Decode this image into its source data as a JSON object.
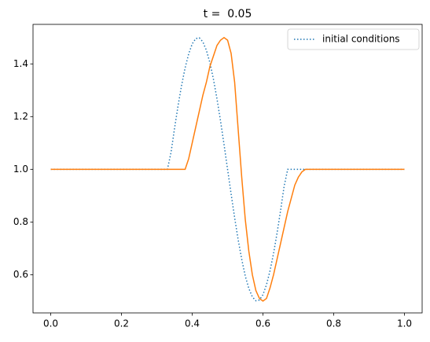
{
  "chart_data": {
    "type": "line",
    "title": "t =  0.05",
    "x": [
      0,
      0.01,
      0.02,
      0.03,
      0.04,
      0.05,
      0.06,
      0.07,
      0.08,
      0.09,
      0.1,
      0.11,
      0.12,
      0.13,
      0.14,
      0.15,
      0.16,
      0.17,
      0.18,
      0.19,
      0.2,
      0.21,
      0.22,
      0.23,
      0.24,
      0.25,
      0.26,
      0.27,
      0.28,
      0.29,
      0.3,
      0.31,
      0.32,
      0.33,
      0.34,
      0.35,
      0.36,
      0.37,
      0.38,
      0.39,
      0.4,
      0.41,
      0.42,
      0.43,
      0.44,
      0.45,
      0.46,
      0.47,
      0.48,
      0.49,
      0.5,
      0.51,
      0.52,
      0.53,
      0.54,
      0.55,
      0.56,
      0.57,
      0.58,
      0.59,
      0.6,
      0.61,
      0.62,
      0.63,
      0.64,
      0.65,
      0.66,
      0.67,
      0.68,
      0.69,
      0.7,
      0.71,
      0.72,
      0.73,
      0.74,
      0.75,
      0.76,
      0.77,
      0.78,
      0.79,
      0.8,
      0.81,
      0.82,
      0.83,
      0.84,
      0.85,
      0.86,
      0.87,
      0.88,
      0.89,
      0.9,
      0.91,
      0.92,
      0.93,
      0.94,
      0.95,
      0.96,
      0.97,
      0.98,
      0.99,
      1
    ],
    "series": [
      {
        "name": "initial conditions",
        "color": "#1f77b4",
        "style": "dotted",
        "values": [
          1,
          1,
          1,
          1,
          1,
          1,
          1,
          1,
          1,
          1,
          1,
          1,
          1,
          1,
          1,
          1,
          1,
          1,
          1,
          1,
          1,
          1,
          1,
          1,
          1,
          1,
          1,
          1,
          1,
          1,
          1,
          1,
          1,
          1,
          1.063,
          1.155,
          1.241,
          1.319,
          1.385,
          1.438,
          1.476,
          1.496,
          1.499,
          1.484,
          1.452,
          1.405,
          1.342,
          1.268,
          1.184,
          1.094,
          1,
          0.906,
          0.816,
          0.732,
          0.658,
          0.595,
          0.548,
          0.516,
          0.501,
          0.504,
          0.524,
          0.562,
          0.615,
          0.681,
          0.759,
          0.845,
          0.937,
          1,
          1,
          1,
          1,
          1,
          1,
          1,
          1,
          1,
          1,
          1,
          1,
          1,
          1,
          1,
          1,
          1,
          1,
          1,
          1,
          1,
          1,
          1,
          1,
          1,
          1,
          1,
          1,
          1,
          1,
          1,
          1,
          1,
          1
        ]
      },
      {
        "color": "#ff7f0e",
        "style": "solid",
        "values": [
          1,
          1,
          1,
          1,
          1,
          1,
          1,
          1,
          1,
          1,
          1,
          1,
          1,
          1,
          1,
          1,
          1,
          1,
          1,
          1,
          1,
          1,
          1,
          1,
          1,
          1,
          1,
          1,
          1,
          1,
          1,
          1,
          1,
          1,
          1,
          1,
          1,
          1,
          1,
          1.04,
          1.1,
          1.16,
          1.22,
          1.28,
          1.33,
          1.39,
          1.43,
          1.47,
          1.49,
          1.5,
          1.49,
          1.44,
          1.33,
          1.15,
          0.97,
          0.81,
          0.69,
          0.6,
          0.54,
          0.51,
          0.5,
          0.51,
          0.55,
          0.6,
          0.66,
          0.72,
          0.78,
          0.84,
          0.89,
          0.94,
          0.97,
          0.99,
          1,
          1,
          1,
          1,
          1,
          1,
          1,
          1,
          1,
          1,
          1,
          1,
          1,
          1,
          1,
          1,
          1,
          1,
          1,
          1,
          1,
          1,
          1,
          1,
          1,
          1,
          1,
          1,
          1
        ]
      }
    ],
    "xlim": [
      -0.05,
      1.05
    ],
    "ylim": [
      0.455,
      1.55
    ],
    "xticks": [
      {
        "value": 0,
        "label": "0.0"
      },
      0.2,
      0.4,
      0.6,
      0.8,
      {
        "value": 1,
        "label": "1.0"
      }
    ],
    "yticks": [
      0.6,
      0.8,
      {
        "value": 1,
        "label": "1.0"
      },
      1.2,
      1.4
    ],
    "legend": "upper right"
  }
}
